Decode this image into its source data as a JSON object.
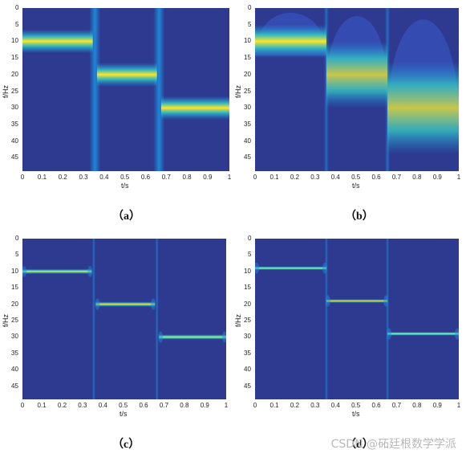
{
  "chart_data": [
    {
      "type": "heatmap",
      "caption": "（a）",
      "xlabel": "t/s",
      "ylabel": "f/Hz",
      "xticks": [
        "0",
        "0.1",
        "0.2",
        "0.3",
        "0.4",
        "0.5",
        "0.6",
        "0.7",
        "0.8",
        "0.9",
        "1"
      ],
      "yticks": [
        "0",
        "5",
        "10",
        "15",
        "20",
        "25",
        "30",
        "35",
        "40",
        "45"
      ],
      "xlim": [
        0,
        1
      ],
      "ylim": [
        0,
        49
      ],
      "ridges": [
        {
          "t_start": 0.0,
          "t_end": 0.34,
          "freq": 10,
          "width_hz": 1.8
        },
        {
          "t_start": 0.36,
          "t_end": 0.65,
          "freq": 20,
          "width_hz": 1.8
        },
        {
          "t_start": 0.67,
          "t_end": 1.0,
          "freq": 30,
          "width_hz": 1.8
        }
      ],
      "style": "stft"
    },
    {
      "type": "heatmap",
      "caption": "（b）",
      "xlabel": "t/s",
      "ylabel": "f/Hz",
      "xticks": [
        "0",
        "0.1",
        "0.2",
        "0.3",
        "0.4",
        "0.5",
        "0.6",
        "0.7",
        "0.8",
        "0.9",
        "1"
      ],
      "yticks": [
        "0",
        "5",
        "10",
        "15",
        "20",
        "25",
        "30",
        "35",
        "40",
        "45"
      ],
      "xlim": [
        0,
        1
      ],
      "ylim": [
        0,
        49
      ],
      "ridges": [
        {
          "t_start": 0.0,
          "t_end": 0.35,
          "freq": 10,
          "width_hz": 2.5
        },
        {
          "t_start": 0.35,
          "t_end": 0.65,
          "freq": 20,
          "width_hz": 5
        },
        {
          "t_start": 0.65,
          "t_end": 1.0,
          "freq": 30,
          "width_hz": 7
        }
      ],
      "style": "wavelet"
    },
    {
      "type": "heatmap",
      "caption": "（c）",
      "xlabel": "t/s",
      "ylabel": "f/Hz",
      "xticks": [
        "0",
        "0.1",
        "0.2",
        "0.3",
        "0.4",
        "0.5",
        "0.6",
        "0.7",
        "0.8",
        "0.9",
        "1"
      ],
      "yticks": [
        "0",
        "5",
        "10",
        "15",
        "20",
        "25",
        "30",
        "35",
        "40",
        "45"
      ],
      "xlim": [
        0,
        1
      ],
      "ylim": [
        0,
        49
      ],
      "ridges": [
        {
          "t_start": 0.0,
          "t_end": 0.34,
          "freq": 10,
          "width_hz": 0.4
        },
        {
          "t_start": 0.36,
          "t_end": 0.65,
          "freq": 20,
          "width_hz": 0.4
        },
        {
          "t_start": 0.67,
          "t_end": 1.0,
          "freq": 30,
          "width_hz": 0.4
        }
      ],
      "style": "sst"
    },
    {
      "type": "heatmap",
      "caption": "（d）",
      "xlabel": "t/s",
      "ylabel": "f/Hz",
      "xticks": [
        "0",
        "0.1",
        "0.2",
        "0.3",
        "0.4",
        "0.5",
        "0.6",
        "0.7",
        "0.8",
        "0.9",
        "1"
      ],
      "yticks": [
        "0",
        "5",
        "10",
        "15",
        "20",
        "25",
        "30",
        "35",
        "40",
        "45"
      ],
      "xlim": [
        0,
        1
      ],
      "ylim": [
        0,
        49
      ],
      "ridges": [
        {
          "t_start": 0.0,
          "t_end": 0.35,
          "freq": 9,
          "width_hz": 0.3
        },
        {
          "t_start": 0.35,
          "t_end": 0.65,
          "freq": 19,
          "width_hz": 0.3
        },
        {
          "t_start": 0.65,
          "t_end": 1.0,
          "freq": 29,
          "width_hz": 0.3
        }
      ],
      "style": "sst"
    }
  ],
  "watermark": "CSDN @砳廷根数学学派",
  "colors": {
    "background": "#2d3a8f",
    "ridge_peak": "#ffe626",
    "ridge_mid": "#34c4c4",
    "halo": "#1e8fe0"
  }
}
